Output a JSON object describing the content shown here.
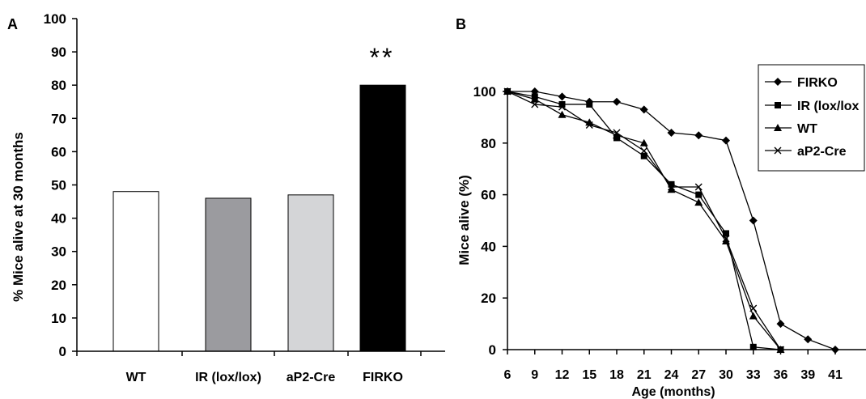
{
  "chart_data": [
    {
      "type": "bar",
      "panel_label": "A",
      "ylabel": "% Mice alive at 30 months",
      "ylim": [
        0,
        100
      ],
      "yticks": [
        "0",
        "10",
        "20",
        "30",
        "40",
        "50",
        "60",
        "70",
        "80",
        "90",
        "100"
      ],
      "categories": [
        "WT",
        "IR (lox/lox)",
        "aP2-Cre",
        "FIRKO"
      ],
      "values": [
        48,
        46,
        47,
        80
      ],
      "colors": [
        "#ffffff",
        "#9b9b9f",
        "#d4d5d7",
        "#000000"
      ],
      "annotation": "**",
      "grid": false
    },
    {
      "type": "line",
      "panel_label": "B",
      "xlabel": "Age (months)",
      "ylabel": "Mice alive (%)",
      "ylim": [
        0,
        100
      ],
      "yticks": [
        "0",
        "20",
        "40",
        "60",
        "80",
        "100"
      ],
      "xticks": [
        "6",
        "9",
        "12",
        "15",
        "18",
        "21",
        "24",
        "27",
        "30",
        "33",
        "36",
        "39",
        "41"
      ],
      "legend_position": "top-right",
      "grid": false,
      "series": [
        {
          "name": "FIRKO",
          "marker": "diamond",
          "x": [
            6,
            9,
            12,
            15,
            18,
            21,
            24,
            27,
            30,
            33,
            36,
            39,
            41
          ],
          "values": [
            100,
            100,
            98,
            96,
            96,
            93,
            84,
            83,
            81,
            50,
            10,
            4,
            0
          ]
        },
        {
          "name": "IR (lox/lox",
          "marker": "square",
          "x": [
            6,
            9,
            12,
            15,
            18,
            21,
            24,
            27,
            30,
            33,
            36
          ],
          "values": [
            100,
            98,
            95,
            95,
            82,
            75,
            64,
            60,
            45,
            1,
            0
          ]
        },
        {
          "name": "WT",
          "marker": "triangle",
          "x": [
            6,
            9,
            12,
            15,
            18,
            21,
            24,
            27,
            30,
            33,
            36
          ],
          "values": [
            100,
            97,
            91,
            88,
            83,
            80,
            62,
            57,
            42,
            13,
            0
          ]
        },
        {
          "name": "aP2-Cre",
          "marker": "x",
          "x": [
            6,
            9,
            12,
            15,
            18,
            21,
            24,
            27,
            30,
            33,
            36
          ],
          "values": [
            100,
            95,
            94,
            87,
            84,
            77,
            63,
            63,
            43,
            16,
            0
          ]
        }
      ]
    }
  ]
}
